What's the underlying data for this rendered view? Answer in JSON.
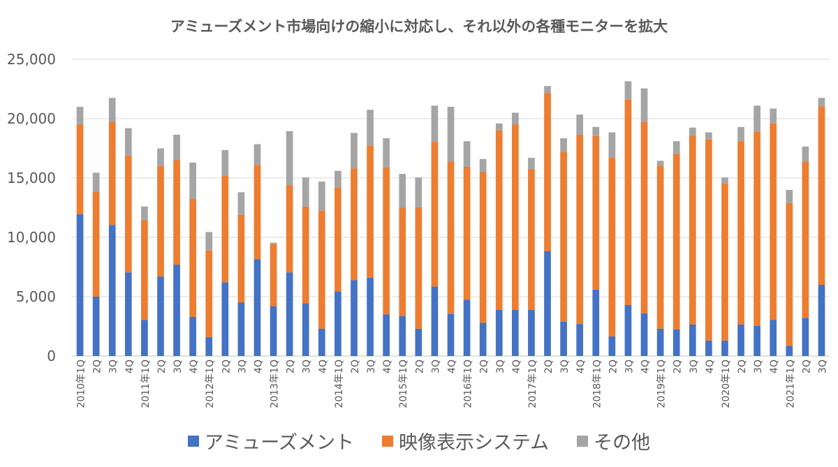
{
  "chart_data": {
    "type": "bar",
    "stacked": true,
    "title": "アミューズメント市場向けの縮小に対応し、それ以外の各種モニターを拡大",
    "xlabel": "",
    "ylabel": "",
    "ylim": [
      0,
      25000
    ],
    "yticks": [
      "0",
      "5,000",
      "10,000",
      "15,000",
      "20,000",
      "25,000"
    ],
    "grid": true,
    "legend_position": "bottom",
    "categories": [
      "2010年1Q",
      "2Q",
      "3Q",
      "4Q",
      "2011年1Q",
      "2Q",
      "3Q",
      "4Q",
      "2012年1Q",
      "2Q",
      "3Q",
      "4Q",
      "2013年1Q",
      "2Q",
      "3Q",
      "4Q",
      "2014年1Q",
      "2Q",
      "3Q",
      "4Q",
      "2015年1Q",
      "2Q",
      "3Q",
      "4Q",
      "2016年1Q",
      "2Q",
      "3Q",
      "4Q",
      "2017年1Q",
      "2Q",
      "3Q",
      "4Q",
      "2018年1Q",
      "2Q",
      "3Q",
      "4Q",
      "2019年1Q",
      "2Q",
      "3Q",
      "4Q",
      "2020年1Q",
      "2Q",
      "3Q",
      "4Q",
      "2021年1Q",
      "2Q",
      "3Q"
    ],
    "series": [
      {
        "name": "アミューズメント",
        "color": "#4472C4",
        "values": [
          11950,
          5000,
          11050,
          7050,
          3050,
          6700,
          7700,
          3300,
          1600,
          6200,
          4500,
          8150,
          4200,
          7050,
          4450,
          2300,
          5450,
          6400,
          6600,
          3500,
          3350,
          2300,
          5850,
          3550,
          4750,
          2800,
          3900,
          3900,
          3900,
          8850,
          2900,
          2700,
          5600,
          1650,
          4300,
          3600,
          2300,
          2250,
          2650,
          1300,
          1300,
          2650,
          2550,
          3050,
          850,
          3200,
          6000
        ]
      },
      {
        "name": "映像表示システム",
        "color": "#ED7D31",
        "values": [
          7550,
          8850,
          8700,
          9850,
          8400,
          9300,
          8800,
          9950,
          7300,
          9000,
          7400,
          7950,
          5250,
          7350,
          8150,
          9950,
          8750,
          9400,
          11150,
          12400,
          9150,
          10250,
          12200,
          12850,
          11200,
          12700,
          15100,
          15600,
          11850,
          13300,
          14300,
          15950,
          12950,
          15050,
          17300,
          16150,
          13700,
          14800,
          15950,
          16950,
          13250,
          15450,
          16350,
          16550,
          12050,
          13200,
          15050
        ]
      },
      {
        "name": "その他",
        "color": "#A5A5A5",
        "values": [
          1500,
          1600,
          2000,
          2300,
          1150,
          1500,
          2150,
          3050,
          1550,
          2150,
          1900,
          1750,
          100,
          4550,
          2450,
          2450,
          1400,
          3000,
          3000,
          2450,
          2850,
          2500,
          3050,
          4600,
          2150,
          1100,
          600,
          1000,
          950,
          600,
          1150,
          1700,
          750,
          2150,
          1550,
          2800,
          450,
          1050,
          650,
          600,
          500,
          1200,
          2200,
          1250,
          1100,
          1250,
          700
        ]
      }
    ]
  }
}
